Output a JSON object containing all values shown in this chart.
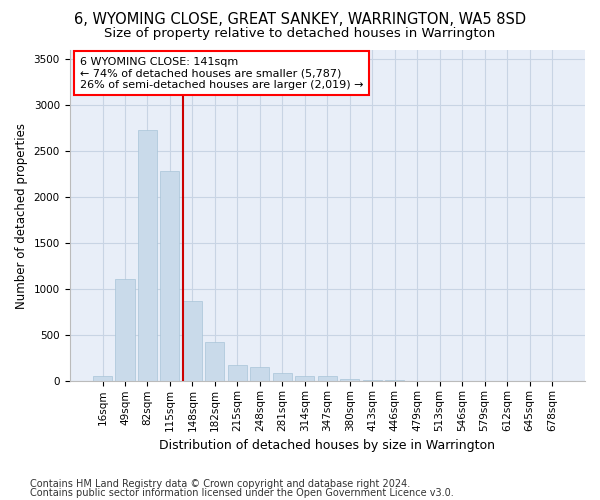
{
  "title": "6, WYOMING CLOSE, GREAT SANKEY, WARRINGTON, WA5 8SD",
  "subtitle": "Size of property relative to detached houses in Warrington",
  "xlabel": "Distribution of detached houses by size in Warrington",
  "ylabel": "Number of detached properties",
  "bar_color": "#c9daea",
  "bar_edge_color": "#a8c4d8",
  "grid_color": "#c8d4e4",
  "background_color": "#e8eef8",
  "vline_color": "#cc0000",
  "annotation_text": "6 WYOMING CLOSE: 141sqm\n← 74% of detached houses are smaller (5,787)\n26% of semi-detached houses are larger (2,019) →",
  "categories": [
    "16sqm",
    "49sqm",
    "82sqm",
    "115sqm",
    "148sqm",
    "182sqm",
    "215sqm",
    "248sqm",
    "281sqm",
    "314sqm",
    "347sqm",
    "380sqm",
    "413sqm",
    "446sqm",
    "479sqm",
    "513sqm",
    "546sqm",
    "579sqm",
    "612sqm",
    "645sqm",
    "678sqm"
  ],
  "values": [
    55,
    1110,
    2730,
    2290,
    870,
    425,
    175,
    160,
    90,
    60,
    55,
    30,
    20,
    15,
    0,
    0,
    0,
    0,
    0,
    0,
    0
  ],
  "vline_bar_index": 4,
  "ylim": [
    0,
    3600
  ],
  "yticks": [
    0,
    500,
    1000,
    1500,
    2000,
    2500,
    3000,
    3500
  ],
  "footer1": "Contains HM Land Registry data © Crown copyright and database right 2024.",
  "footer2": "Contains public sector information licensed under the Open Government Licence v3.0.",
  "title_fontsize": 10.5,
  "subtitle_fontsize": 9.5,
  "xlabel_fontsize": 9,
  "ylabel_fontsize": 8.5,
  "tick_fontsize": 7.5,
  "annot_fontsize": 8,
  "footer_fontsize": 7
}
